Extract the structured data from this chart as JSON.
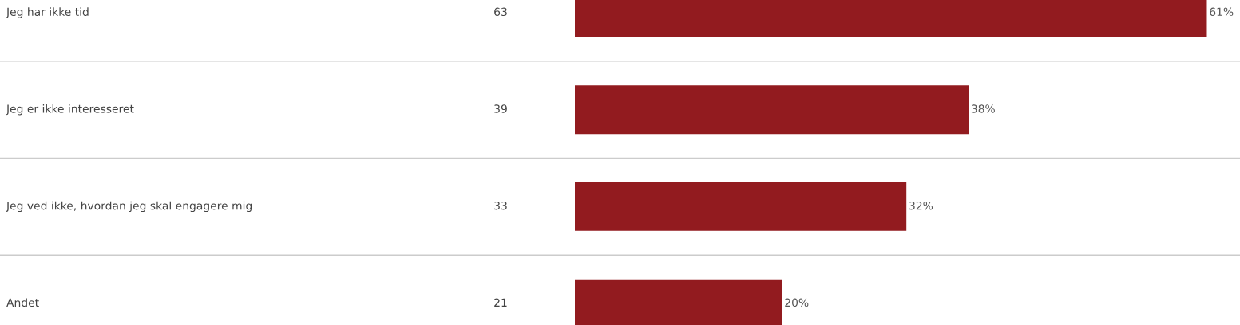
{
  "chart_data": {
    "type": "bar",
    "orientation": "horizontal",
    "categories": [
      "Jeg har ikke tid",
      "Jeg er ikke interesseret",
      "Jeg ved ikke, hvordan jeg skal engagere mig",
      "Andet"
    ],
    "values": [
      61,
      38,
      32,
      20
    ],
    "value_labels": [
      "61%",
      "38%",
      "32%",
      "20%"
    ],
    "color": "#921b1f",
    "xlim": [
      0,
      64.2
    ],
    "annotations": [
      "63",
      "39",
      "33",
      "21"
    ]
  }
}
